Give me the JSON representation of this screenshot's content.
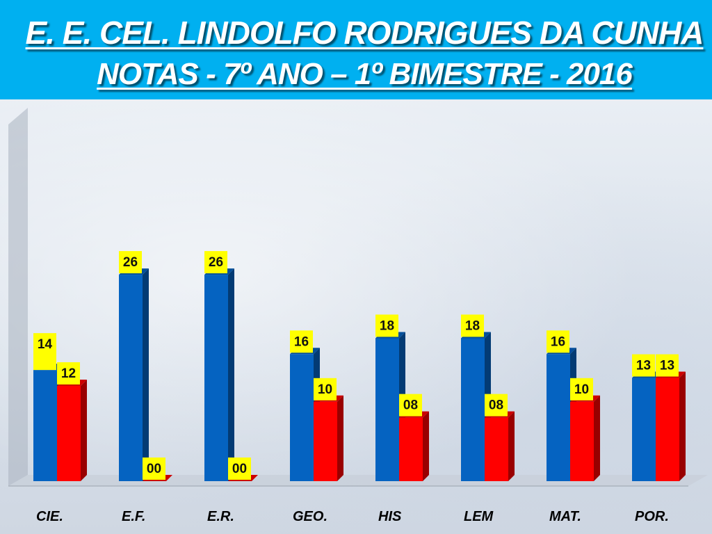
{
  "header": {
    "title_line1": "E. E. CEL. LINDOLFO RODRIGUES DA CUNHA",
    "title_line2": "NOTAS  - 7º ANO – 1º BIMESTRE - 2016"
  },
  "colors": {
    "header_bg": "#00b0f0",
    "series1": "#0563c1",
    "series2": "#ff0000",
    "label_bg": "#ffff00"
  },
  "chart_data": {
    "type": "bar",
    "categories": [
      "CIE.",
      "E.F.",
      "E.R.",
      "GEO.",
      "HIS",
      "LEM",
      "MAT.",
      "POR."
    ],
    "series": [
      {
        "values": [
          14,
          26,
          26,
          16,
          18,
          18,
          16,
          13
        ]
      },
      {
        "values": [
          12,
          0,
          0,
          10,
          8,
          8,
          10,
          13
        ]
      }
    ],
    "data_labels": [
      [
        "14",
        "26",
        "26",
        "16",
        "18",
        "18",
        "16",
        "13"
      ],
      [
        "12",
        "00",
        "00",
        "10",
        "08",
        "08",
        "10",
        "13"
      ]
    ],
    "ylim": [
      0,
      26
    ],
    "grid": false,
    "legend": "none"
  }
}
